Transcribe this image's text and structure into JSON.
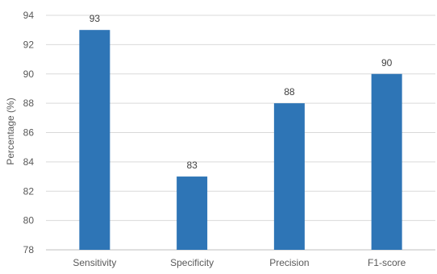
{
  "chart_data": {
    "type": "bar",
    "title": "",
    "xlabel": "",
    "ylabel": "Percentage (%)",
    "categories": [
      "Sensitivity",
      "Specificity",
      "Precision",
      "F1-score"
    ],
    "values": [
      93,
      83,
      88,
      90
    ],
    "data_labels": [
      "93",
      "83",
      "88",
      "90"
    ],
    "ylim": [
      78,
      94
    ],
    "yticks": [
      78,
      80,
      82,
      84,
      86,
      88,
      90,
      92,
      94
    ],
    "ytick_labels": [
      "78",
      "80",
      "82",
      "84",
      "86",
      "88",
      "90",
      "92",
      "94"
    ],
    "grid": true,
    "legend": "none",
    "colors": {
      "bar": "#2E75B6",
      "grid": "#D9D9D9",
      "axis": "#BFBFBF",
      "text": "#595959",
      "data_label": "#404040"
    }
  }
}
